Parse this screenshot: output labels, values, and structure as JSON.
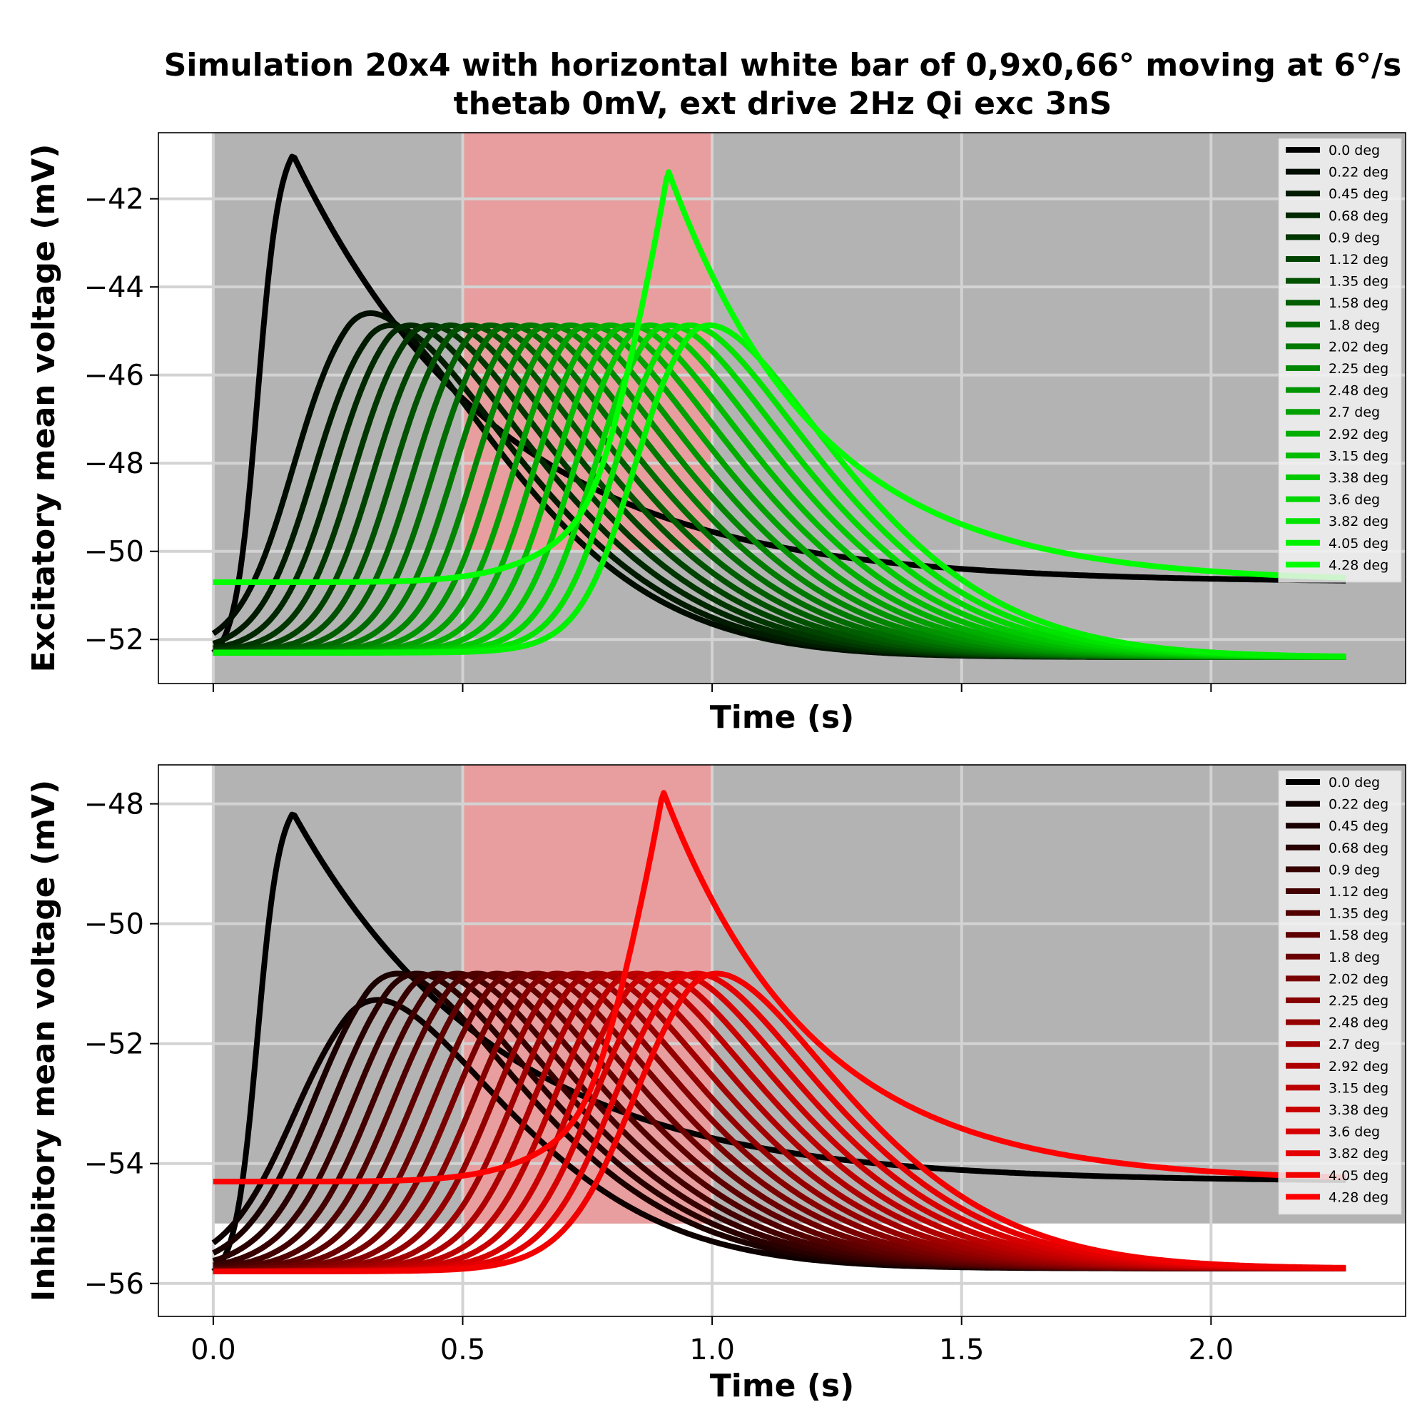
{
  "figure_title": {
    "line1": "Simulation 20x4 with horizontal white bar of 0,9x0,66° moving at 6°/s",
    "line2": "thetab 0mV, ext drive 2Hz Qi exc 3nS"
  },
  "colors": {
    "background_gray": "#b3b3b3",
    "stimulus_pink": "#e89e9e",
    "grid": "#d3d3d3",
    "exc_start": "#000000",
    "exc_end": "#00ff00",
    "inh_start": "#000000",
    "inh_end": "#ff0000"
  },
  "chart_data": [
    {
      "type": "line",
      "name": "excitatory",
      "xlabel": "Time (s)",
      "ylabel": "Excitatory mean voltage (mV)",
      "xlim": [
        -0.11,
        2.39
      ],
      "ylim": [
        -53.0,
        -40.5
      ],
      "xticks": [
        0.0,
        0.5,
        1.0,
        1.5,
        2.0
      ],
      "xtick_labels_visible": false,
      "yticks": [
        -52,
        -50,
        -48,
        -46,
        -44,
        -42
      ],
      "ytick_labels": [
        "−52",
        "−50",
        "−48",
        "−46",
        "−44",
        "−42"
      ],
      "grid": true,
      "gray_region": {
        "x": [
          0.0,
          2.39
        ],
        "y": [
          -53.0,
          -40.5
        ]
      },
      "stimulus_region": {
        "x": [
          0.5,
          1.0
        ],
        "y": [
          -50.0,
          -40.5
        ]
      },
      "legend_position": "upper-right",
      "series_model": {
        "count": 20,
        "baseline": -52.3,
        "end_value": -52.4,
        "first_onset": 0.03,
        "onset_step": 0.04,
        "plateau_value": -44.2,
        "rise_width": 0.055,
        "first_peak": {
          "t": 0.16,
          "v": -41.0,
          "end": -50.7
        },
        "second_peak": {
          "v": -43.9
        },
        "last_peak": {
          "t": 0.91,
          "v": -41.3,
          "baseline": -50.7,
          "end": -50.7
        }
      },
      "series": [
        {
          "name": "0.0 deg"
        },
        {
          "name": "0.22 deg"
        },
        {
          "name": "0.45 deg"
        },
        {
          "name": "0.68 deg"
        },
        {
          "name": "0.9 deg"
        },
        {
          "name": "1.12 deg"
        },
        {
          "name": "1.35 deg"
        },
        {
          "name": "1.58 deg"
        },
        {
          "name": "1.8 deg"
        },
        {
          "name": "2.02 deg"
        },
        {
          "name": "2.25 deg"
        },
        {
          "name": "2.48 deg"
        },
        {
          "name": "2.7 deg"
        },
        {
          "name": "2.92 deg"
        },
        {
          "name": "3.15 deg"
        },
        {
          "name": "3.38 deg"
        },
        {
          "name": "3.6 deg"
        },
        {
          "name": "3.82 deg"
        },
        {
          "name": "4.05 deg"
        },
        {
          "name": "4.28 deg"
        }
      ]
    },
    {
      "type": "line",
      "name": "inhibitory",
      "xlabel": "Time (s)",
      "ylabel": "Inhibitory mean voltage (mV)",
      "xlim": [
        -0.11,
        2.39
      ],
      "ylim": [
        -56.55,
        -47.35
      ],
      "xticks": [
        0.0,
        0.5,
        1.0,
        1.5,
        2.0
      ],
      "xtick_labels": [
        "0.0",
        "0.5",
        "1.0",
        "1.5",
        "2.0"
      ],
      "xtick_labels_visible": true,
      "yticks": [
        -56,
        -54,
        -52,
        -50,
        -48
      ],
      "ytick_labels": [
        "−56",
        "−54",
        "−52",
        "−50",
        "−48"
      ],
      "grid": true,
      "gray_region": {
        "x": [
          0.0,
          2.39
        ],
        "y": [
          -55.0,
          -47.35
        ]
      },
      "stimulus_region": {
        "x": [
          0.5,
          1.0
        ],
        "y": [
          -55.0,
          -47.35
        ]
      },
      "legend_position": "upper-right",
      "series_model": {
        "count": 20,
        "baseline": -55.8,
        "end_value": -55.75,
        "first_onset": 0.03,
        "onset_step": 0.04,
        "plateau_value": -50.15,
        "rise_width": 0.07,
        "first_peak": {
          "t": 0.16,
          "v": -48.15,
          "end": -54.3
        },
        "second_peak": {
          "v": -50.65
        },
        "last_peak": {
          "t": 0.9,
          "v": -47.75,
          "baseline": -54.3,
          "end": -54.3
        }
      },
      "series": [
        {
          "name": "0.0 deg"
        },
        {
          "name": "0.22 deg"
        },
        {
          "name": "0.45 deg"
        },
        {
          "name": "0.68 deg"
        },
        {
          "name": "0.9 deg"
        },
        {
          "name": "1.12 deg"
        },
        {
          "name": "1.35 deg"
        },
        {
          "name": "1.58 deg"
        },
        {
          "name": "1.8 deg"
        },
        {
          "name": "2.02 deg"
        },
        {
          "name": "2.25 deg"
        },
        {
          "name": "2.48 deg"
        },
        {
          "name": "2.7 deg"
        },
        {
          "name": "2.92 deg"
        },
        {
          "name": "3.15 deg"
        },
        {
          "name": "3.38 deg"
        },
        {
          "name": "3.6 deg"
        },
        {
          "name": "3.82 deg"
        },
        {
          "name": "4.05 deg"
        },
        {
          "name": "4.28 deg"
        }
      ]
    }
  ]
}
